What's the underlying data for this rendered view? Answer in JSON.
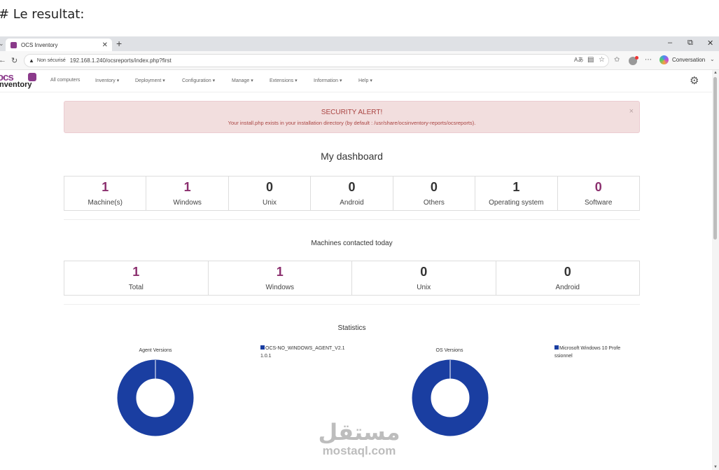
{
  "caption": "# Le resultat:",
  "browser": {
    "tab_title": "OCS Inventory",
    "new_tab": "+",
    "not_secure": "Non sécurisé",
    "url": "192.168.1.240/ocsreports/index.php?first",
    "conversation": "Conversation",
    "win_min": "–",
    "win_max": "⬭",
    "win_close": "✕"
  },
  "app": {
    "logo_top": "ocs",
    "logo_bottom": "inventory",
    "menu": [
      {
        "label": "All computers"
      },
      {
        "label": "Inventory ▾"
      },
      {
        "label": "Deployment ▾"
      },
      {
        "label": "Configuration ▾"
      },
      {
        "label": "Manage ▾"
      },
      {
        "label": "Extensions ▾"
      },
      {
        "label": "Information ▾"
      },
      {
        "label": "Help ▾"
      }
    ]
  },
  "alert": {
    "title": "SECURITY ALERT!",
    "message": "Your install.php exists in your installation directory (by default : /usr/share/ocsinventory-reports/ocsreports).",
    "close": "×"
  },
  "dashboard": {
    "title": "My dashboard",
    "stats": [
      {
        "value": "1",
        "label": "Machine(s)",
        "color": "#8b2f6e"
      },
      {
        "value": "1",
        "label": "Windows",
        "color": "#8b2f6e"
      },
      {
        "value": "0",
        "label": "Unix",
        "color": "#333333"
      },
      {
        "value": "0",
        "label": "Android",
        "color": "#333333"
      },
      {
        "value": "0",
        "label": "Others",
        "color": "#333333"
      },
      {
        "value": "1",
        "label": "Operating system",
        "color": "#333333"
      },
      {
        "value": "0",
        "label": "Software",
        "color": "#8b2f6e"
      }
    ]
  },
  "contacted": {
    "title": "Machines contacted today",
    "stats": [
      {
        "value": "1",
        "label": "Total"
      },
      {
        "value": "1",
        "label": "Windows"
      },
      {
        "value": "0",
        "label": "Unix"
      },
      {
        "value": "0",
        "label": "Android"
      }
    ]
  },
  "statistics": {
    "title": "Statistics",
    "charts": [
      {
        "title": "Agent Versions",
        "legend": "OCS-NO_WINDOWS_AGENT_V2.11.0.1",
        "color": "#1a3ea1"
      },
      {
        "title": "OS Versions",
        "legend": "Microsoft Windows 10 Professionnel",
        "color": "#1a3ea1"
      }
    ]
  },
  "watermark": {
    "arabic": "مستقل",
    "latin": "mostaql.com"
  },
  "chart_data": [
    {
      "type": "pie",
      "title": "Agent Versions",
      "categories": [
        "OCS-NO_WINDOWS_AGENT_V2.11.0.1"
      ],
      "values": [
        1
      ]
    },
    {
      "type": "pie",
      "title": "OS Versions",
      "categories": [
        "Microsoft Windows 10 Professionnel"
      ],
      "values": [
        1
      ]
    }
  ]
}
